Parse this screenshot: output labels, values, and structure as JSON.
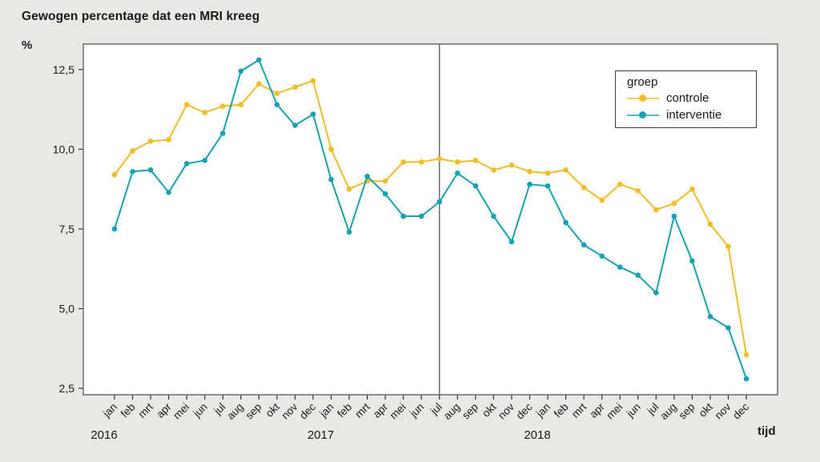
{
  "chart_data": {
    "type": "line",
    "title": "Gewogen percentage dat een MRI kreeg",
    "ylabel": "%",
    "xlabel": "tijd",
    "ylim": [
      2.3,
      13.3
    ],
    "yticks": [
      2.5,
      5.0,
      7.5,
      10.0,
      12.5
    ],
    "ytick_labels": [
      "2,5",
      "5,0",
      "7,5",
      "10,0",
      "12,5"
    ],
    "months": [
      "jan",
      "feb",
      "mrt",
      "apr",
      "mei",
      "jun",
      "jul",
      "aug",
      "sep",
      "okt",
      "nov",
      "dec"
    ],
    "years": [
      {
        "label": "2016",
        "start_index": 0
      },
      {
        "label": "2017",
        "start_index": 12
      },
      {
        "label": "2018",
        "start_index": 24
      }
    ],
    "reference_line_index": 18,
    "grid": false,
    "legend_title": "groep",
    "legend_position": "upper right",
    "series": [
      {
        "name": "controle",
        "color": "#f0bd28",
        "values": [
          9.2,
          9.95,
          10.25,
          10.3,
          11.4,
          11.15,
          11.35,
          11.4,
          12.05,
          11.75,
          11.95,
          12.15,
          10.0,
          8.75,
          9.0,
          9.0,
          9.6,
          9.6,
          9.7,
          9.6,
          9.65,
          9.35,
          9.5,
          9.3,
          9.25,
          9.35,
          8.8,
          8.4,
          8.9,
          8.7,
          8.1,
          8.3,
          8.75,
          7.65,
          6.95,
          3.55
        ]
      },
      {
        "name": "interventie",
        "color": "#17a2b4",
        "values": [
          7.5,
          9.3,
          9.35,
          8.65,
          9.55,
          9.65,
          10.5,
          12.45,
          12.8,
          11.4,
          10.75,
          11.1,
          9.05,
          7.4,
          9.15,
          8.6,
          7.9,
          7.9,
          8.35,
          9.25,
          8.85,
          7.9,
          7.1,
          8.9,
          8.85,
          7.7,
          7.0,
          6.65,
          6.3,
          6.05,
          5.5,
          7.9,
          6.5,
          4.75,
          4.4,
          2.8
        ]
      }
    ]
  }
}
